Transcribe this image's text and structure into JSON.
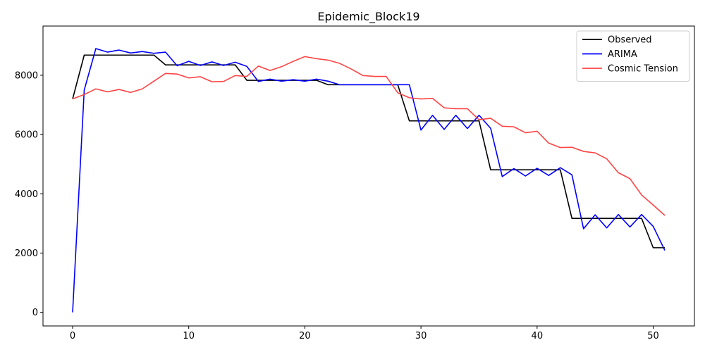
{
  "chart_data": {
    "type": "line",
    "title": "Epidemic_Block19",
    "xlabel": "",
    "ylabel": "",
    "xlim": [
      -2.55,
      53.55
    ],
    "ylim": [
      -460,
      9660
    ],
    "xticks": [
      0,
      10,
      20,
      30,
      40,
      50
    ],
    "yticks": [
      0,
      2000,
      4000,
      6000,
      8000
    ],
    "grid": false,
    "legend_position": "top-right",
    "x": [
      0,
      1,
      2,
      3,
      4,
      5,
      6,
      7,
      8,
      9,
      10,
      11,
      12,
      13,
      14,
      15,
      16,
      17,
      18,
      19,
      20,
      21,
      22,
      23,
      24,
      25,
      26,
      27,
      28,
      29,
      30,
      31,
      32,
      33,
      34,
      35,
      36,
      37,
      38,
      39,
      40,
      41,
      42,
      43,
      44,
      45,
      46,
      47,
      48,
      49,
      50,
      51
    ],
    "series": [
      {
        "name": "Observed",
        "color": "#000000",
        "values": [
          7200,
          8680,
          8680,
          8680,
          8680,
          8680,
          8680,
          8680,
          8350,
          8350,
          8350,
          8350,
          8350,
          8350,
          8350,
          7830,
          7830,
          7830,
          7830,
          7830,
          7830,
          7830,
          7680,
          7680,
          7680,
          7680,
          7680,
          7680,
          7680,
          6460,
          6460,
          6460,
          6460,
          6460,
          6460,
          6460,
          4810,
          4810,
          4810,
          4810,
          4810,
          4810,
          4810,
          3170,
          3170,
          3170,
          3170,
          3170,
          3170,
          3170,
          2180,
          2180
        ]
      },
      {
        "name": "ARIMA",
        "color": "#0000ff",
        "values": [
          0,
          7500,
          8900,
          8780,
          8850,
          8750,
          8800,
          8740,
          8780,
          8320,
          8470,
          8330,
          8450,
          8330,
          8440,
          8300,
          7790,
          7870,
          7800,
          7850,
          7800,
          7870,
          7800,
          7680,
          7680,
          7680,
          7680,
          7680,
          7680,
          7680,
          6150,
          6650,
          6170,
          6650,
          6200,
          6650,
          6210,
          4580,
          4850,
          4600,
          4860,
          4620,
          4880,
          4640,
          2820,
          3290,
          2850,
          3300,
          2880,
          3300,
          2900,
          2090
        ]
      },
      {
        "name": "Cosmic Tension",
        "color": "#ff4444",
        "values": [
          7200,
          7350,
          7540,
          7440,
          7520,
          7420,
          7540,
          7800,
          8060,
          8040,
          7910,
          7950,
          7780,
          7790,
          7990,
          7960,
          8310,
          8160,
          8290,
          8470,
          8630,
          8560,
          8510,
          8400,
          8210,
          7990,
          7960,
          7960,
          7410,
          7240,
          7200,
          7220,
          6900,
          6870,
          6870,
          6500,
          6550,
          6280,
          6260,
          6060,
          6110,
          5710,
          5560,
          5570,
          5430,
          5380,
          5180,
          4710,
          4510,
          3960,
          3620,
          3270
        ]
      }
    ]
  }
}
